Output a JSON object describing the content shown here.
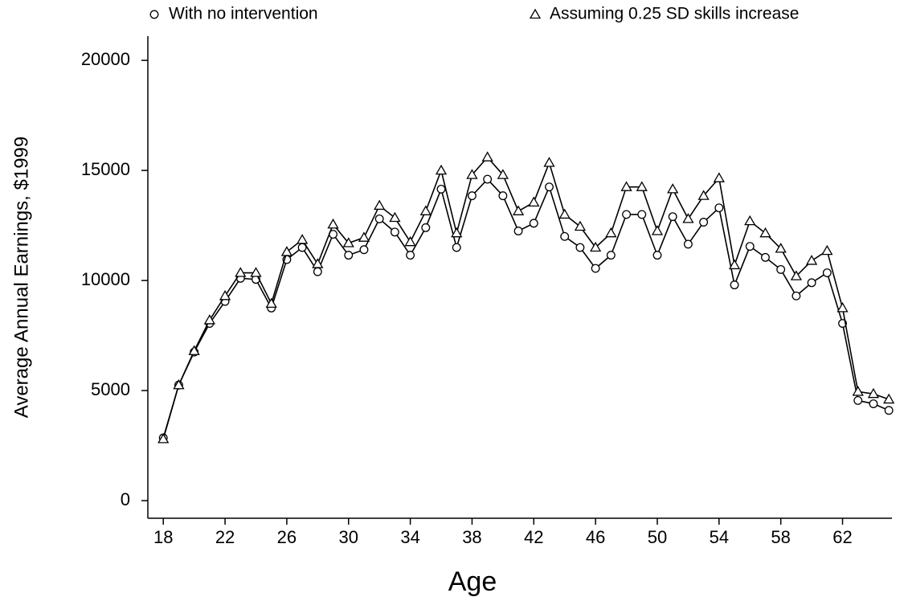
{
  "chart_data": {
    "type": "line",
    "x_label": "Age",
    "y_label": "Average Annual Earnings, $1999",
    "x": [
      18,
      19,
      20,
      21,
      22,
      23,
      24,
      25,
      26,
      27,
      28,
      29,
      30,
      31,
      32,
      33,
      34,
      35,
      36,
      37,
      38,
      39,
      40,
      41,
      42,
      43,
      44,
      45,
      46,
      47,
      48,
      49,
      50,
      51,
      52,
      53,
      54,
      55,
      56,
      57,
      58,
      59,
      60,
      61,
      62,
      63,
      64,
      65
    ],
    "series": [
      {
        "name": "With no intervention",
        "color": "#000000",
        "marker": "circle",
        "values": [
          2850,
          5250,
          6750,
          8050,
          9050,
          10100,
          10050,
          8750,
          10950,
          11500,
          10400,
          12100,
          11150,
          11400,
          12800,
          12200,
          11150,
          12400,
          14150,
          11500,
          13850,
          14600,
          13850,
          12250,
          12600,
          14250,
          12000,
          11500,
          10550,
          11150,
          13000,
          13000,
          11150,
          12900,
          11650,
          12650,
          13300,
          9800,
          11550,
          11050,
          10500,
          9300,
          9900,
          10350,
          8050,
          4550,
          4400,
          4100
        ]
      },
      {
        "name": "Assuming 0.25 SD skills increase",
        "color": "#000000",
        "marker": "triangle",
        "values": [
          2800,
          5250,
          6800,
          8200,
          9300,
          10350,
          10350,
          8950,
          11300,
          11850,
          10750,
          12550,
          11700,
          11950,
          13400,
          12850,
          11750,
          13150,
          15000,
          12150,
          14800,
          15600,
          14800,
          13150,
          13550,
          15350,
          13000,
          12450,
          11500,
          12150,
          14250,
          14250,
          12250,
          14150,
          12800,
          13850,
          14650,
          10700,
          12700,
          12150,
          11450,
          10200,
          10900,
          11350,
          8750,
          4950,
          4850,
          4600
        ]
      }
    ],
    "xlim": [
      17,
      65.2
    ],
    "ylim": [
      -800,
      21100
    ],
    "xticks": [
      18,
      22,
      26,
      30,
      34,
      38,
      42,
      46,
      50,
      54,
      58,
      62
    ],
    "yticks": [
      0,
      5000,
      10000,
      15000,
      20000
    ],
    "grid": false
  }
}
